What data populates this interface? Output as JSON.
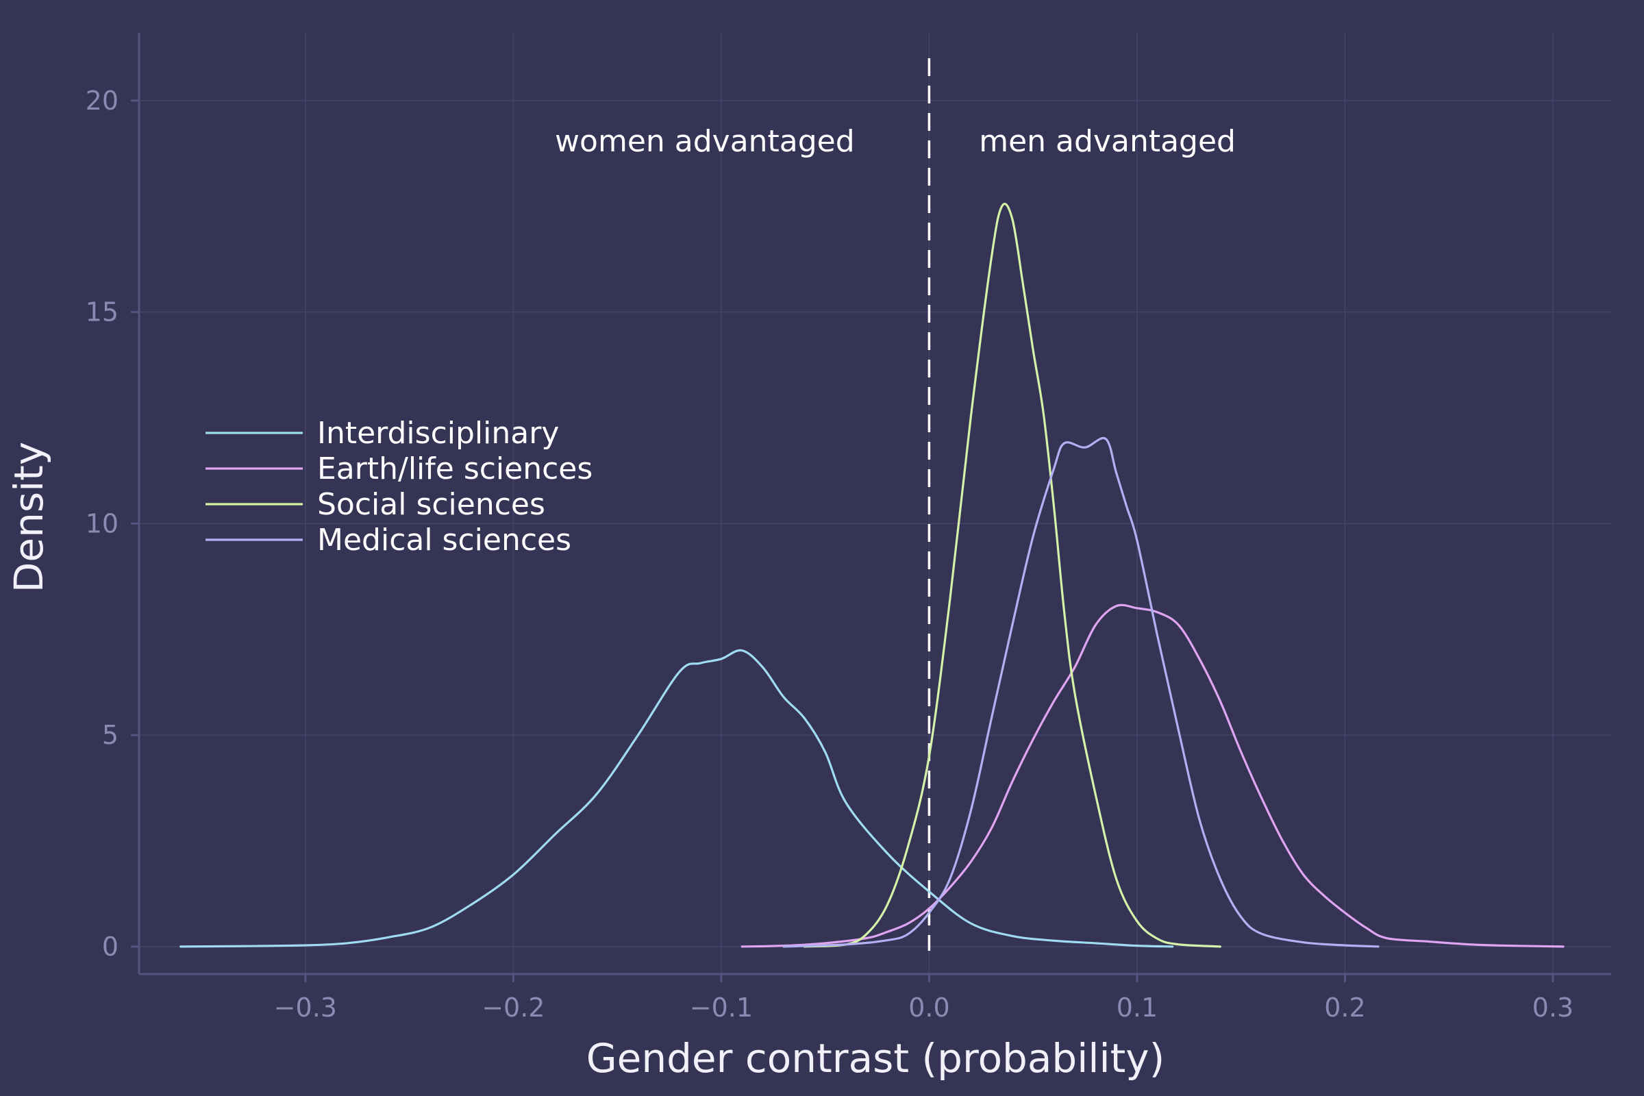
{
  "chart_data": {
    "type": "line",
    "title": "",
    "xlabel": "Gender contrast (probability)",
    "ylabel": "Density",
    "xlim": [
      -0.38,
      0.328
    ],
    "ylim": [
      -0.65,
      21.6
    ],
    "xticks": [
      -0.3,
      -0.2,
      -0.1,
      0.0,
      0.1,
      0.2,
      0.3
    ],
    "xtick_labels": [
      "−0.3",
      "−0.2",
      "−0.1",
      "0.0",
      "0.1",
      "0.2",
      "0.3"
    ],
    "yticks": [
      0,
      5,
      10,
      15,
      20
    ],
    "ytick_labels": [
      "0",
      "5",
      "10",
      "15",
      "20"
    ],
    "grid": true,
    "legend_position": "center-left",
    "reference_line": {
      "x": 0.0,
      "style": "dashed",
      "color": "#ffffff"
    },
    "annotations": [
      {
        "text": "women advantaged",
        "x": -0.18,
        "y": 18.8
      },
      {
        "text": "men advantaged",
        "x": 0.024,
        "y": 18.8
      }
    ],
    "series": [
      {
        "name": "Interdisciplinary",
        "color": "#9fdcf2",
        "x": [
          -0.36,
          -0.33,
          -0.3,
          -0.28,
          -0.26,
          -0.24,
          -0.22,
          -0.2,
          -0.18,
          -0.16,
          -0.14,
          -0.12,
          -0.11,
          -0.1,
          -0.09,
          -0.08,
          -0.07,
          -0.06,
          -0.05,
          -0.04,
          -0.02,
          0.0,
          0.02,
          0.04,
          0.06,
          0.08,
          0.1,
          0.117
        ],
        "y": [
          0.0,
          0.01,
          0.03,
          0.08,
          0.22,
          0.45,
          1.0,
          1.7,
          2.65,
          3.6,
          5.0,
          6.5,
          6.7,
          6.8,
          7.0,
          6.6,
          5.9,
          5.4,
          4.6,
          3.4,
          2.2,
          1.3,
          0.55,
          0.25,
          0.14,
          0.08,
          0.02,
          0.0
        ]
      },
      {
        "name": "Earth/life sciences",
        "color": "#dfa4f2",
        "x": [
          -0.09,
          -0.07,
          -0.05,
          -0.03,
          -0.02,
          -0.01,
          0.0,
          0.01,
          0.02,
          0.03,
          0.04,
          0.05,
          0.06,
          0.07,
          0.08,
          0.09,
          0.1,
          0.11,
          0.12,
          0.13,
          0.14,
          0.15,
          0.16,
          0.17,
          0.18,
          0.19,
          0.2,
          0.21,
          0.22,
          0.24,
          0.26,
          0.28,
          0.305
        ],
        "y": [
          0.0,
          0.02,
          0.08,
          0.2,
          0.35,
          0.55,
          0.9,
          1.4,
          2.0,
          2.8,
          3.9,
          4.9,
          5.8,
          6.6,
          7.6,
          8.05,
          8.0,
          7.9,
          7.6,
          6.8,
          5.8,
          4.6,
          3.5,
          2.5,
          1.7,
          1.2,
          0.8,
          0.45,
          0.2,
          0.12,
          0.05,
          0.02,
          0.0
        ]
      },
      {
        "name": "Social sciences",
        "color": "#d4f2a8",
        "x": [
          -0.06,
          -0.04,
          -0.03,
          -0.02,
          -0.01,
          0.0,
          0.01,
          0.02,
          0.03,
          0.035,
          0.04,
          0.045,
          0.05,
          0.055,
          0.06,
          0.065,
          0.07,
          0.08,
          0.09,
          0.1,
          0.11,
          0.12,
          0.14
        ],
        "y": [
          0.0,
          0.05,
          0.3,
          1.0,
          2.4,
          4.5,
          8.2,
          12.5,
          16.3,
          17.5,
          17.2,
          15.7,
          14.1,
          12.6,
          10.4,
          7.9,
          6.0,
          3.6,
          1.6,
          0.6,
          0.18,
          0.05,
          0.0
        ]
      },
      {
        "name": "Medical sciences",
        "color": "#b2b0f2",
        "x": [
          -0.07,
          -0.04,
          -0.02,
          -0.01,
          0.0,
          0.01,
          0.02,
          0.03,
          0.04,
          0.05,
          0.06,
          0.065,
          0.075,
          0.085,
          0.09,
          0.095,
          0.1,
          0.11,
          0.12,
          0.13,
          0.14,
          0.15,
          0.16,
          0.18,
          0.2,
          0.216
        ],
        "y": [
          0.0,
          0.05,
          0.15,
          0.3,
          0.8,
          1.6,
          3.2,
          5.4,
          7.6,
          9.7,
          11.3,
          11.9,
          11.8,
          12.0,
          11.2,
          10.4,
          9.6,
          7.3,
          5.1,
          3.0,
          1.6,
          0.7,
          0.3,
          0.1,
          0.03,
          0.0
        ]
      }
    ]
  }
}
